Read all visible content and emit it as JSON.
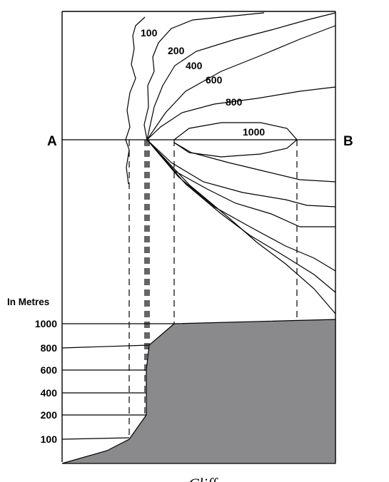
{
  "contours": {
    "labels": [
      "100",
      "200",
      "400",
      "600",
      "800",
      "1000"
    ]
  },
  "section_line": {
    "start_label": "A",
    "end_label": "B"
  },
  "profile": {
    "unit_label": "In Metres",
    "height_labels": [
      "1000",
      "800",
      "600",
      "400",
      "200",
      "100"
    ],
    "fill_color": "#8a8a8c"
  },
  "caption": "Cliff"
}
